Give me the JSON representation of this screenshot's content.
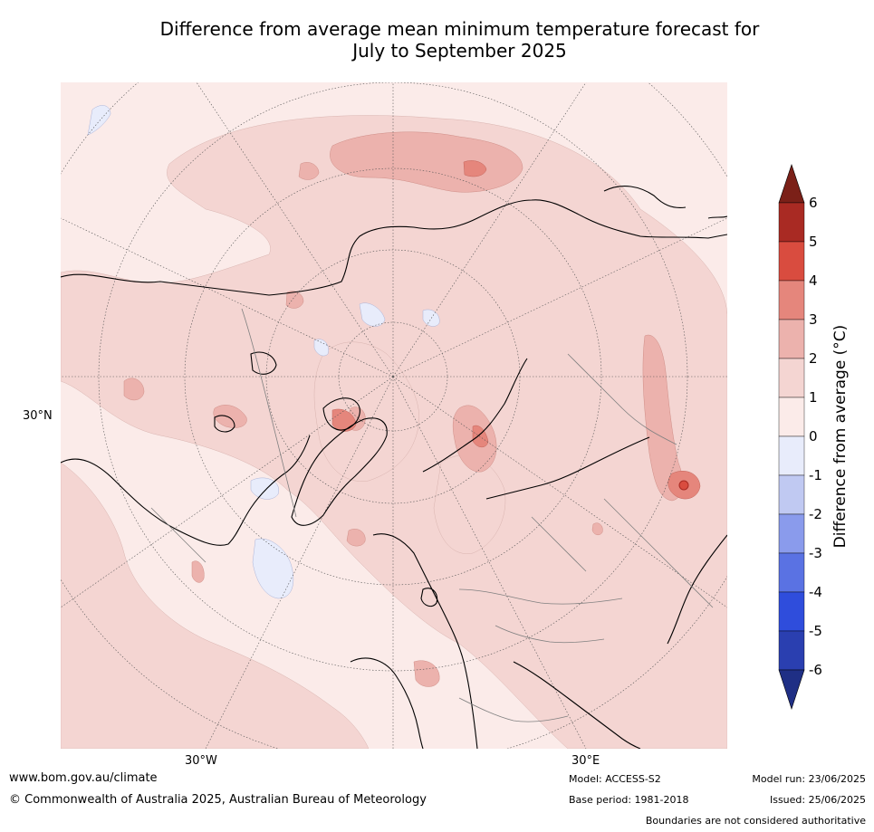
{
  "title_line1": "Difference from average mean minimum temperature forecast for",
  "title_line2": "July to September 2025",
  "map": {
    "projection": "north-polar-stereographic",
    "labels": {
      "lat_30n": "30°N",
      "lon_30w": "30°W",
      "lon_30e": "30°E"
    },
    "colors": {
      "ocean_base": "#fbebe9",
      "anom_1_2": "#f4d5d2",
      "anom_2_3": "#ecb2ad",
      "anom_3_4": "#e5867c",
      "anom_neg_0_1": "#e8ecfb",
      "coast": "#000000",
      "border": "#808080",
      "graticule": "#555555"
    }
  },
  "colorbar": {
    "label": "Difference from average (°C)",
    "ticks": [
      "6",
      "5",
      "4",
      "3",
      "2",
      "1",
      "0",
      "-1",
      "-2",
      "-3",
      "-4",
      "-5",
      "-6"
    ],
    "bands": [
      {
        "from": 5,
        "to": 6,
        "color": "#a92a23"
      },
      {
        "from": 4,
        "to": 5,
        "color": "#d94c3f"
      },
      {
        "from": 3,
        "to": 4,
        "color": "#e5867c"
      },
      {
        "from": 2,
        "to": 3,
        "color": "#ecb2ad"
      },
      {
        "from": 1,
        "to": 2,
        "color": "#f4d5d2"
      },
      {
        "from": 0,
        "to": 1,
        "color": "#fbebe9"
      },
      {
        "from": -1,
        "to": 0,
        "color": "#e8ecfb"
      },
      {
        "from": -2,
        "to": -1,
        "color": "#c0c9f2"
      },
      {
        "from": -3,
        "to": -2,
        "color": "#8a9bec"
      },
      {
        "from": -4,
        "to": -3,
        "color": "#5a72e3"
      },
      {
        "from": -5,
        "to": -4,
        "color": "#2f4ddc"
      },
      {
        "from": -6,
        "to": -5,
        "color": "#2a3fb0"
      }
    ],
    "over_color": "#7b2018",
    "under_color": "#1f2f85"
  },
  "footer": {
    "website": "www.bom.gov.au/climate",
    "copyright": "© Commonwealth of Australia 2025, Australian Bureau of Meteorology",
    "model": "Model: ACCESS-S2",
    "base_period": "Base period: 1981-2018",
    "model_run": "Model run: 23/06/2025",
    "issued": "Issued: 25/06/2025",
    "disclaimer": "Boundaries are not considered authoritative"
  }
}
